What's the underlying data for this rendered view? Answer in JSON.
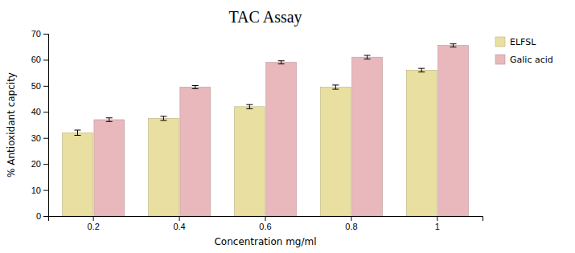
{
  "chart_data": {
    "type": "bar",
    "title": "TAC Assay",
    "xlabel": "Concentration mg/ml",
    "ylabel": "% Antioxidant capcity",
    "categories": [
      "0.2",
      "0.4",
      "0.6",
      "0.8",
      "1"
    ],
    "series": [
      {
        "name": "ELFSL",
        "color": "#e8dfa0",
        "values": [
          32.0,
          37.5,
          42.0,
          49.5,
          56.0
        ],
        "errors": [
          1.0,
          0.8,
          0.8,
          0.8,
          0.7
        ]
      },
      {
        "name": "Galic acid",
        "color": "#e8b8bc",
        "values": [
          37.0,
          49.5,
          59.0,
          61.0,
          65.5
        ],
        "errors": [
          0.7,
          0.6,
          0.6,
          0.7,
          0.6
        ]
      }
    ],
    "ylim": [
      0,
      70
    ],
    "yticks": [
      0,
      10,
      20,
      30,
      40,
      50,
      60,
      70
    ],
    "grid": false,
    "legend": "upper right"
  }
}
